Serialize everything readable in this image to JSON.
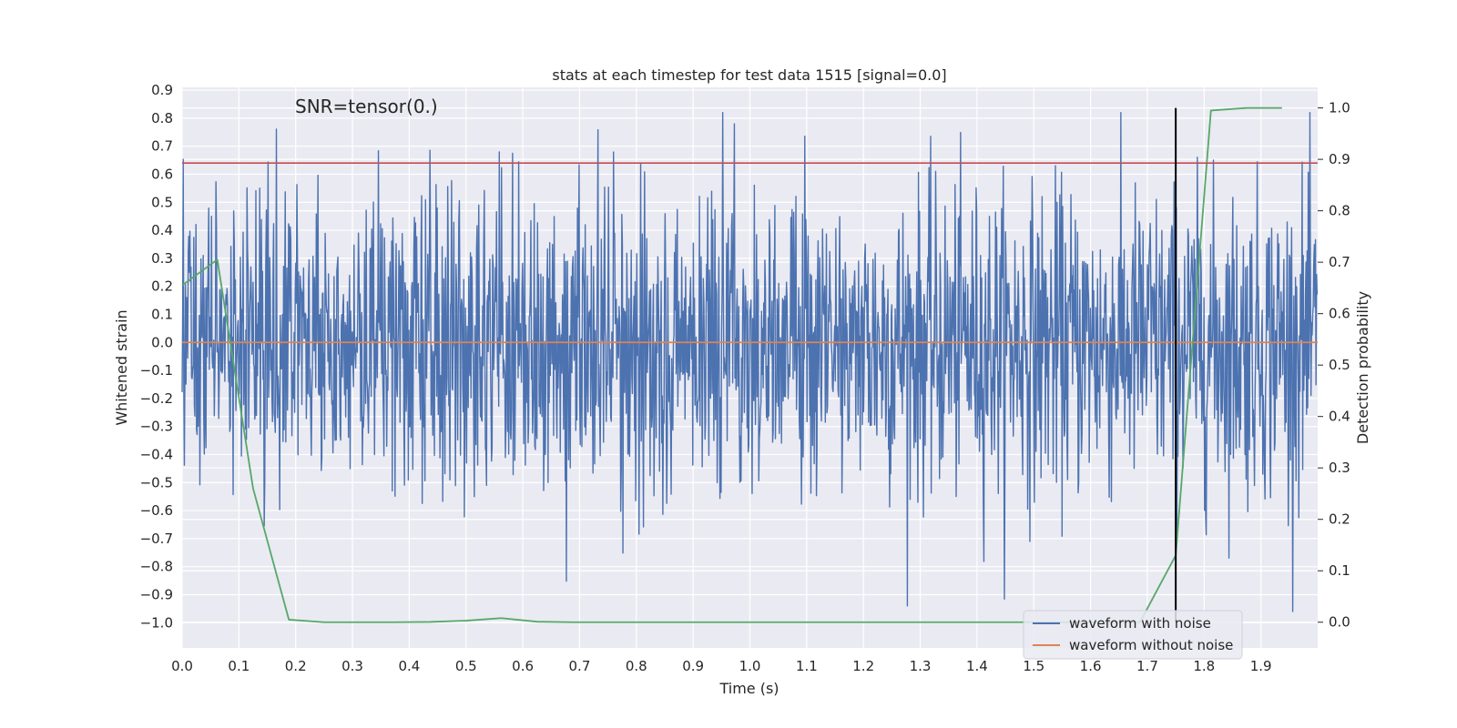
{
  "chart_data": {
    "type": "line",
    "title": "stats at each timestep for test data 1515 [signal=0.0]",
    "xlabel": "Time (s)",
    "ylabel": "Whitened strain",
    "y2label": "Detection probability",
    "annotation": "SNR=tensor(0.)",
    "xlim": [
      0.0,
      2.0
    ],
    "ylim": [
      -1.09,
      0.91
    ],
    "y2lim": [
      -0.05,
      1.04
    ],
    "x_ticks": [
      "0.0",
      "0.1",
      "0.2",
      "0.3",
      "0.4",
      "0.5",
      "0.6",
      "0.7",
      "0.8",
      "0.9",
      "1.0",
      "1.1",
      "1.2",
      "1.3",
      "1.4",
      "1.5",
      "1.6",
      "1.7",
      "1.8",
      "1.9"
    ],
    "y_ticks": [
      "0.9",
      "0.8",
      "0.7",
      "0.6",
      "0.5",
      "0.4",
      "0.3",
      "0.2",
      "0.1",
      "0.0",
      "−0.1",
      "−0.2",
      "−0.3",
      "−0.4",
      "−0.5",
      "−0.6",
      "−0.7",
      "−0.8",
      "−0.9",
      "−1.0"
    ],
    "y2_ticks": [
      "1.0",
      "0.9",
      "0.8",
      "0.7",
      "0.6",
      "0.5",
      "0.4",
      "0.3",
      "0.2",
      "0.1",
      "0.0"
    ],
    "grid": true,
    "legend_position": "lower-right",
    "series": [
      {
        "name": "waveform with noise",
        "axis": "left",
        "color": "#4c72b0",
        "style": "noise",
        "x_range": [
          0.0,
          2.0
        ],
        "n_samples": 2048,
        "amplitude_std": 0.27,
        "y_min_observed": -0.96,
        "y_max_observed": 0.82
      },
      {
        "name": "waveform without noise",
        "axis": "left",
        "color": "#dd8452",
        "x": [
          0.0,
          2.0
        ],
        "y": [
          0.0,
          0.0
        ]
      },
      {
        "name": "",
        "axis": "right",
        "color": "#55a868",
        "x": [
          0.0,
          0.062,
          0.125,
          0.188,
          0.25,
          0.312,
          0.375,
          0.437,
          0.5,
          0.562,
          0.625,
          0.687,
          0.75,
          0.812,
          0.875,
          0.937,
          1.0,
          1.062,
          1.125,
          1.187,
          1.25,
          1.312,
          1.375,
          1.437,
          1.5,
          1.562,
          1.625,
          1.687,
          1.75,
          1.812,
          1.875,
          1.937
        ],
        "y": [
          0.655,
          0.705,
          0.26,
          0.005,
          0.0,
          0.0,
          0.0,
          0.0005,
          0.003,
          0.008,
          0.001,
          0.0,
          0.0,
          0.0,
          0.0,
          0.0,
          0.0,
          0.0,
          0.0,
          0.0,
          0.0,
          0.0,
          0.0,
          0.0,
          0.0,
          0.0,
          0.0,
          0.0,
          0.13,
          0.995,
          1.0,
          1.0
        ]
      }
    ],
    "hlines": [
      {
        "axis": "left",
        "y": 0.64,
        "color": "#c44e52"
      }
    ],
    "vlines": [
      {
        "axis": "right",
        "x": 1.75,
        "y_range": [
          0.0,
          1.0
        ],
        "color": "#000000"
      }
    ],
    "legend": [
      {
        "label": "waveform with noise",
        "color": "#4c72b0"
      },
      {
        "label": "waveform without noise",
        "color": "#dd8452"
      }
    ],
    "colors": {
      "plot_background": "#eaeaf2",
      "grid": "#ffffff",
      "text": "#262626"
    }
  }
}
